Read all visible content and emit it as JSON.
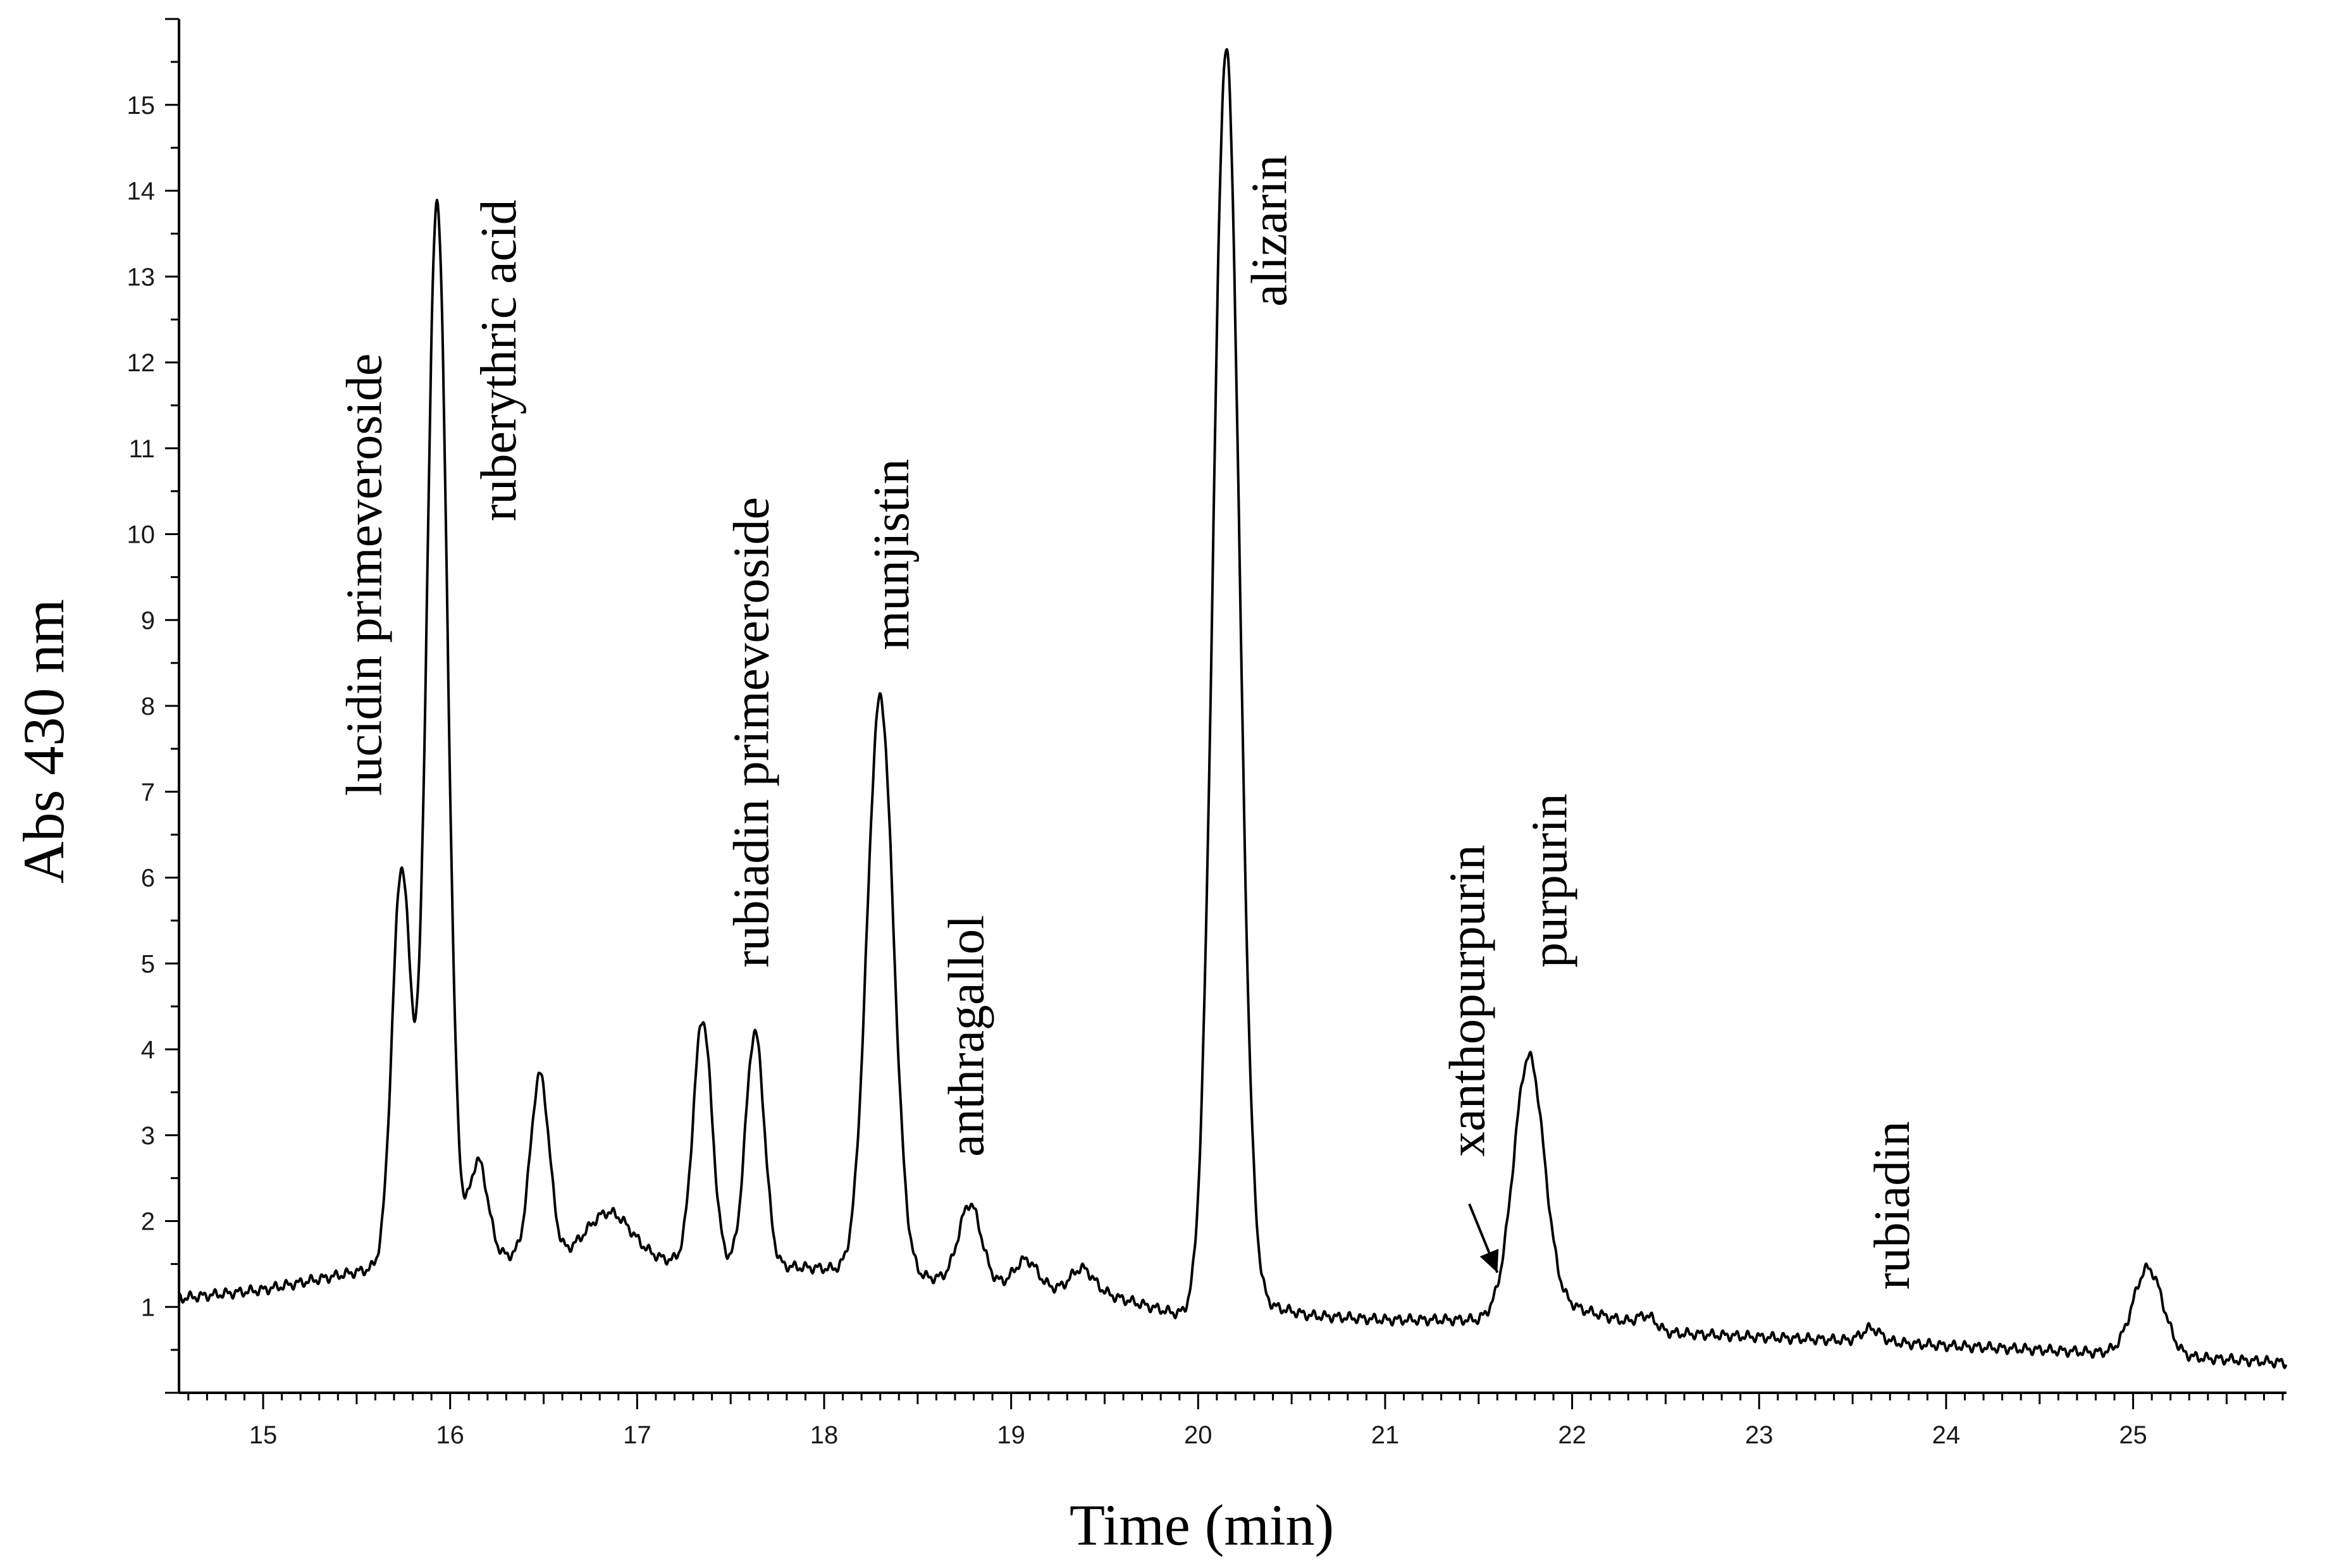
{
  "chart_data": {
    "type": "line",
    "title": "",
    "xlabel": "Time (min)",
    "ylabel": "Abs 430 nm",
    "xlim": [
      14.55,
      25.82
    ],
    "ylim": [
      0,
      16
    ],
    "x_ticks": [
      "15",
      "16",
      "17",
      "18",
      "19",
      "20",
      "21",
      "22",
      "23",
      "24",
      "25"
    ],
    "y_ticks": [
      "1",
      "2",
      "3",
      "4",
      "5",
      "6",
      "7",
      "8",
      "9",
      "10",
      "11",
      "12",
      "13",
      "14",
      "15"
    ],
    "grid": false,
    "baseline": [
      [
        14.55,
        1.1
      ],
      [
        15.0,
        1.2
      ],
      [
        15.6,
        1.45
      ],
      [
        16.2,
        1.6
      ],
      [
        17.0,
        1.55
      ],
      [
        18.0,
        1.45
      ],
      [
        19.0,
        1.25
      ],
      [
        19.5,
        1.15
      ],
      [
        20.0,
        0.85
      ],
      [
        20.3,
        1.05
      ],
      [
        20.6,
        0.9
      ],
      [
        21.0,
        0.85
      ],
      [
        21.5,
        0.85
      ],
      [
        21.7,
        1.05
      ],
      [
        22.0,
        1.0
      ],
      [
        22.5,
        0.7
      ],
      [
        23.0,
        0.65
      ],
      [
        23.6,
        0.6
      ],
      [
        24.0,
        0.55
      ],
      [
        24.5,
        0.5
      ],
      [
        25.0,
        0.45
      ],
      [
        25.82,
        0.35
      ]
    ],
    "peaks": [
      {
        "name": "lucidin primeveroside",
        "rt": 15.74,
        "height": 6.1,
        "width": 0.05
      },
      {
        "name": "ruberythric acid",
        "rt": 15.93,
        "height": 13.9,
        "width": 0.055
      },
      {
        "name": "",
        "rt": 16.15,
        "height": 2.7,
        "width": 0.05
      },
      {
        "name": "",
        "rt": 16.48,
        "height": 3.7,
        "width": 0.05
      },
      {
        "name": "",
        "rt": 16.85,
        "height": 2.1,
        "width": 0.12
      },
      {
        "name": "",
        "rt": 17.35,
        "height": 4.35,
        "width": 0.05
      },
      {
        "name": "rubiadin primeveroside",
        "rt": 17.63,
        "height": 4.2,
        "width": 0.05
      },
      {
        "name": "munjistin",
        "rt": 18.3,
        "height": 8.1,
        "width": 0.07
      },
      {
        "name": "anthragallol",
        "rt": 18.78,
        "height": 2.2,
        "width": 0.06
      },
      {
        "name": "",
        "rt": 19.08,
        "height": 1.55,
        "width": 0.06
      },
      {
        "name": "",
        "rt": 19.38,
        "height": 1.45,
        "width": 0.06
      },
      {
        "name": "alizarin",
        "rt": 20.15,
        "height": 15.65,
        "width": 0.07
      },
      {
        "name": "purpurin",
        "rt": 21.77,
        "height": 3.92,
        "width": 0.08
      },
      {
        "name": "",
        "rt": 22.4,
        "height": 0.9,
        "width": 0.05
      },
      {
        "name": "rubiadin",
        "rt": 23.6,
        "height": 0.75,
        "width": 0.05
      },
      {
        "name": "",
        "rt": 25.08,
        "height": 1.45,
        "width": 0.08
      }
    ],
    "annotations": [
      {
        "text": "lucidin primeveroside",
        "x": 15.63,
        "y": 6.95
      },
      {
        "text": "ruberythric acid",
        "x": 16.35,
        "y": 10.15
      },
      {
        "text": "rubiadin primeveroside",
        "x": 17.7,
        "y": 4.95
      },
      {
        "text": "munjistin",
        "x": 18.45,
        "y": 8.65
      },
      {
        "text": "anthragallol",
        "x": 18.85,
        "y": 2.75
      },
      {
        "text": "alizarin",
        "x": 20.47,
        "y": 12.65
      },
      {
        "text": "xanthopurpurin",
        "x": 21.53,
        "y": 2.75
      },
      {
        "text": "purpurin",
        "x": 21.97,
        "y": 4.95
      },
      {
        "text": "rubiadin",
        "x": 23.8,
        "y": 1.2
      }
    ],
    "arrow": {
      "from": [
        21.45,
        2.2
      ],
      "to": [
        21.6,
        1.4
      ]
    }
  }
}
